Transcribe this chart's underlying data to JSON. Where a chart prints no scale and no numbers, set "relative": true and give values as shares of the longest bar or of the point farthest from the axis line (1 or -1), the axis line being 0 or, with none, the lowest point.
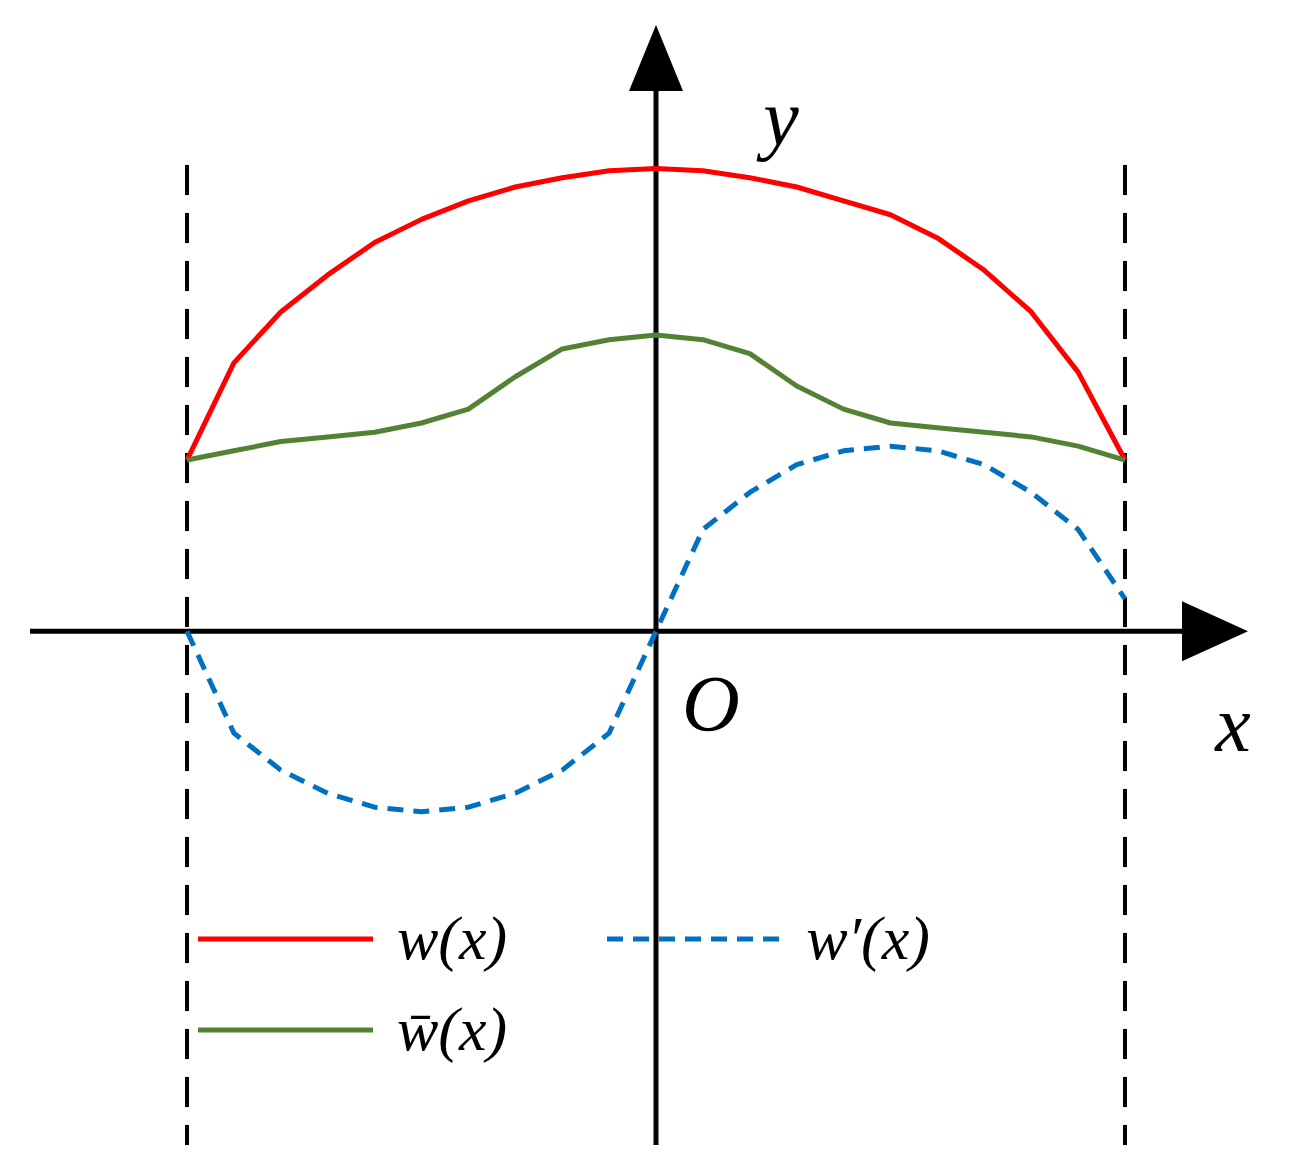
{
  "chart_data": {
    "type": "line",
    "relative": true,
    "xlabel": "x",
    "ylabel": "y",
    "annotations": [
      "O"
    ],
    "categories": [
      null,
      null,
      null,
      null,
      null,
      null,
      null,
      null,
      null,
      null,
      null,
      null,
      null,
      null,
      null,
      null,
      null,
      null,
      null,
      null,
      null
    ],
    "tick_labels": false,
    "legend": "bottom left",
    "marker": "none",
    "series": [
      {
        "name": "w(x)",
        "color": "#ff0000",
        "line_style": "solid",
        "values": [
          0.37,
          0.58,
          0.69,
          0.77,
          0.84,
          0.89,
          0.93,
          0.96,
          0.98,
          0.995,
          1,
          0.995,
          0.98,
          0.96,
          0.93,
          0.9,
          0.85,
          0.78,
          0.69,
          0.56,
          0.37
        ]
      },
      {
        "name": "w̄(x)",
        "color": "#548235",
        "line_style": "solid",
        "values": [
          0.37,
          0.39,
          0.41,
          0.42,
          0.43,
          0.45,
          0.48,
          0.55,
          0.61,
          0.63,
          0.64,
          0.63,
          0.6,
          0.53,
          0.48,
          0.45,
          0.44,
          0.43,
          0.42,
          0.4,
          0.37
        ]
      },
      {
        "name": "w′(x)",
        "color": "#0070c0",
        "line_style": "dashed",
        "values": [
          0,
          -0.22,
          -0.3,
          -0.35,
          -0.38,
          -0.39,
          -0.38,
          -0.35,
          -0.3,
          -0.22,
          0,
          0.22,
          0.3,
          0.36,
          0.39,
          0.4,
          0.39,
          0.36,
          0.3,
          0.22,
          0.07
        ]
      }
    ]
  }
}
